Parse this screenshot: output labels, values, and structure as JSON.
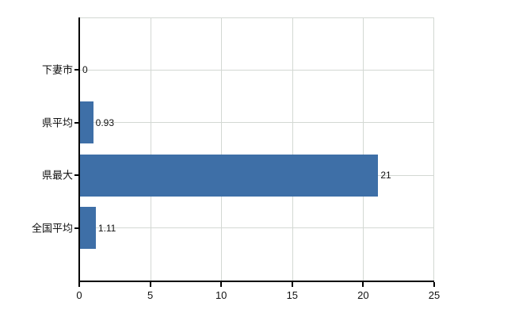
{
  "chart_data": {
    "type": "bar",
    "orientation": "horizontal",
    "title": "",
    "xlabel": "",
    "ylabel": "",
    "categories": [
      "下妻市",
      "県平均",
      "県最大",
      "全国平均"
    ],
    "values": [
      0,
      0.93,
      21,
      1.11
    ],
    "value_labels": [
      "0",
      "0.93",
      "21",
      "1.11"
    ],
    "x_ticks": [
      "0",
      "5",
      "10",
      "15",
      "20",
      "25"
    ],
    "x_tick_values": [
      0,
      5,
      10,
      15,
      20,
      25
    ],
    "xlim": [
      0,
      25
    ],
    "grid": true,
    "legend": false,
    "bar_color": "#3e6fa7",
    "axis_color": "#000000",
    "grid_color": "#d3d8d3",
    "text_color": "#111111",
    "background": "#ffffff"
  }
}
